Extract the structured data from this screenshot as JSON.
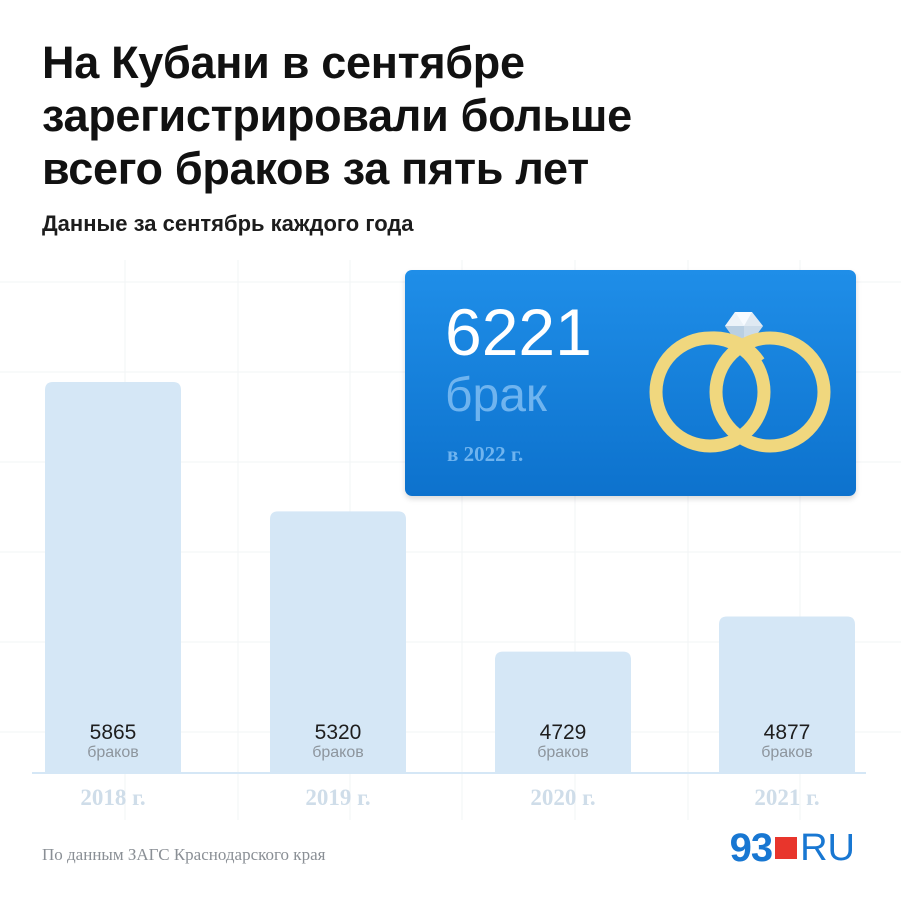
{
  "header": {
    "title": "На Кубани в сентябре зарегистрировали больше всего браков за пять лет",
    "subtitle": "Данные за сентябрь каждого года"
  },
  "highlight": {
    "value": "6221",
    "unit": "брак",
    "year": "в 2022 г."
  },
  "chart_data": {
    "type": "bar",
    "categories": [
      "2018 г.",
      "2019 г.",
      "2020 г.",
      "2021 г."
    ],
    "values": [
      5865,
      5320,
      4729,
      4877
    ],
    "value_labels": [
      "5865",
      "5320",
      "4729",
      "4877"
    ],
    "unit_label": "браков",
    "highlighted": {
      "category": "2022 г.",
      "value": 6221
    },
    "title": "На Кубани в сентябре зарегистрировали больше всего браков за пять лет",
    "subtitle": "Данные за сентябрь каждого года",
    "grid": false
  },
  "source": "По данным ЗАГС Краснодарского края",
  "logo": {
    "number": "93",
    "suffix": "RU"
  },
  "colors": {
    "bar": "#d5e7f6",
    "highlight_bg": "#1a86e0",
    "ring": "#f0d77e",
    "logo": "#1877d2",
    "logo_accent": "#e8352c"
  },
  "icons": {
    "rings": "wedding-rings-icon",
    "diamond": "diamond-icon"
  }
}
